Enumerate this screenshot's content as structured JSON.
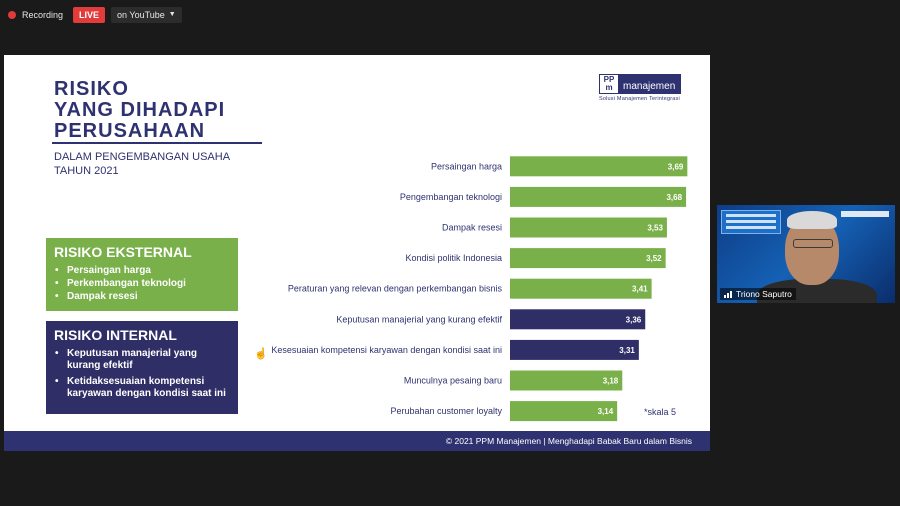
{
  "topbar": {
    "recording_label": "Recording",
    "live_label": "LIVE",
    "stream_target": "on YouTube"
  },
  "slide": {
    "title_lines": [
      "RISIKO",
      "YANG DIHADAPI",
      "PERUSAHAAN"
    ],
    "subtitle_lines": [
      "DALAM PENGEMBANGAN USAHA",
      "TAHUN 2021"
    ],
    "logo": {
      "mark": "PP m",
      "name": "manajemen",
      "tagline": "Solusi Manajemen Terintegrasi"
    },
    "external": {
      "heading": "RISIKO EKSTERNAL",
      "items": [
        "Persaingan harga",
        "Perkembangan teknologi",
        "Dampak resesi"
      ]
    },
    "internal": {
      "heading": "RISIKO INTERNAL",
      "items": [
        "Keputusan manajerial yang kurang efektif",
        "Ketidaksesuaian kompetensi karyawan dengan kondisi saat ini"
      ]
    },
    "scale_note": "*skala 5",
    "footer": "© 2021   PPM Manajemen | Menghadapi Babak Baru dalam Bisnis"
  },
  "chart_data": {
    "type": "bar",
    "orientation": "horizontal",
    "categories": [
      "Persaingan harga",
      "Pengembangan teknologi",
      "Dampak resesi",
      "Kondisi politik Indonesia",
      "Peraturan yang relevan dengan perkembangan bisnis",
      "Keputusan manajerial yang kurang efektif",
      "Kesesuaian kompetensi karyawan dengan kondisi saat ini",
      "Munculnya pesaing baru",
      "Perubahan customer loyalty"
    ],
    "values": [
      3.69,
      3.68,
      3.53,
      3.52,
      3.41,
      3.36,
      3.31,
      3.18,
      3.14
    ],
    "value_labels": [
      "3,69",
      "3,68",
      "3,53",
      "3,52",
      "3,41",
      "3,36",
      "3,31",
      "3,18",
      "3,14"
    ],
    "bar_colors": [
      "#79b04a",
      "#79b04a",
      "#79b04a",
      "#79b04a",
      "#79b04a",
      "#2f2e66",
      "#2f2e66",
      "#79b04a",
      "#79b04a"
    ],
    "xlim": [
      2.3,
      3.75
    ],
    "grid": false,
    "legend": "none"
  },
  "webcam": {
    "participant_name": "Triono Saputro"
  }
}
